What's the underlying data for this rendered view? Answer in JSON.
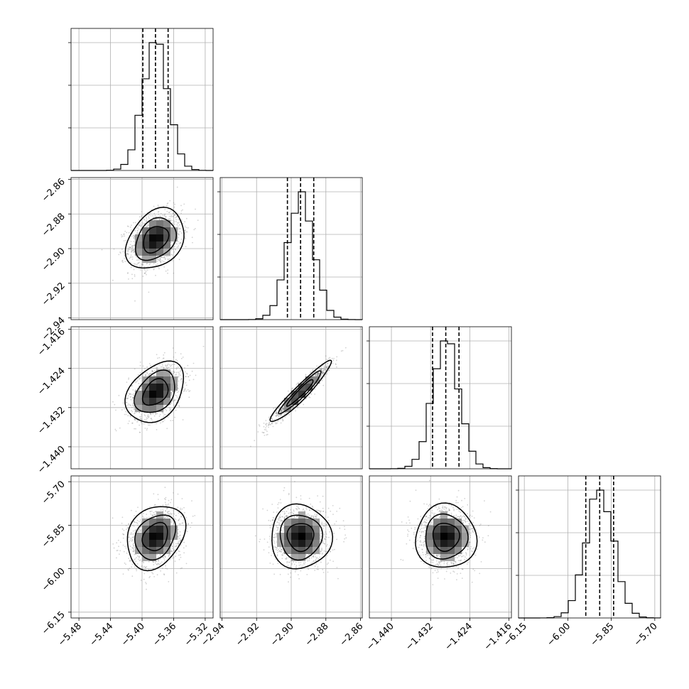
{
  "chart_data": {
    "type": "corner",
    "grid": true,
    "parameters": [
      {
        "range": [
          -5.49,
          -5.31
        ],
        "ticks": [
          -5.48,
          -5.44,
          -5.4,
          -5.36,
          -5.32
        ],
        "tick_labels": [
          "−5.48",
          "−5.44",
          "−5.40",
          "−5.36",
          "−5.32"
        ],
        "mean": -5.383,
        "sd": 0.016,
        "quantiles": [
          -5.399,
          -5.383,
          -5.367
        ]
      },
      {
        "range": [
          -2.941,
          -2.859
        ],
        "ticks": [
          -2.94,
          -2.92,
          -2.9,
          -2.88,
          -2.86
        ],
        "tick_labels": [
          "−2.94",
          "−2.92",
          "−2.90",
          "−2.88",
          "−2.86"
        ],
        "mean": -2.8946,
        "sd": 0.0076,
        "quantiles": [
          -2.9022,
          -2.8946,
          -2.887
        ]
      },
      {
        "range": [
          -1.4445,
          -1.4155
        ],
        "ticks": [
          -1.44,
          -1.432,
          -1.424,
          -1.416
        ],
        "tick_labels": [
          "−1.440",
          "−1.432",
          "−1.424",
          "−1.416"
        ],
        "mean": -1.4289,
        "sd": 0.0027,
        "quantiles": [
          -1.4316,
          -1.4289,
          -1.4262
        ]
      },
      {
        "range": [
          -6.17,
          -5.68
        ],
        "ticks": [
          -6.15,
          -6.0,
          -5.85,
          -5.7
        ],
        "tick_labels": [
          "−6.15",
          "−6.00",
          "−5.85",
          "−5.70"
        ],
        "mean": -5.89,
        "sd": 0.048,
        "quantiles": [
          -5.938,
          -5.89,
          -5.842
        ]
      }
    ],
    "correlations": {
      "1_0": 0.3,
      "2_0": 0.35,
      "2_1": 0.95,
      "3_0": 0.25,
      "3_1": 0.0,
      "3_2": 0.0
    },
    "colors": {
      "contour": "#000000",
      "grid": "#b0b0b0",
      "points": "#808080",
      "hist": "#000000"
    }
  }
}
